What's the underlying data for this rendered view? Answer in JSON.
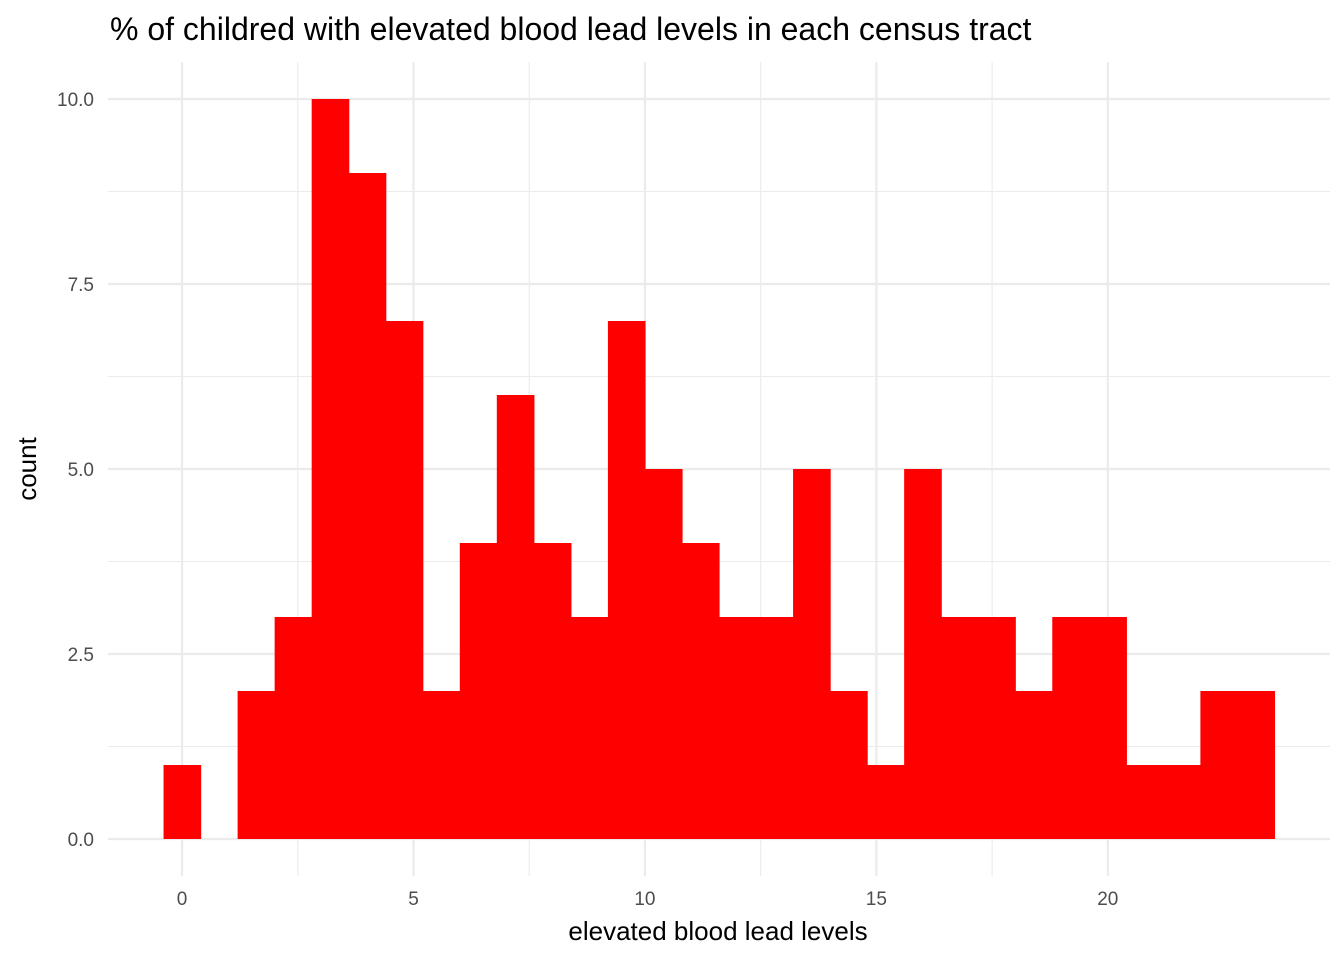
{
  "chart_data": {
    "type": "bar",
    "subtype": "histogram",
    "title": "% of childred with elevated blood lead levels in each census tract",
    "xlabel": "elevated blood lead levels",
    "ylabel": "count",
    "bin_start": -0.4,
    "bin_width": 0.8,
    "counts": [
      1,
      0,
      2,
      3,
      10,
      9,
      7,
      2,
      4,
      6,
      4,
      3,
      7,
      5,
      4,
      3,
      3,
      5,
      2,
      1,
      5,
      3,
      3,
      2,
      3,
      3,
      1,
      1,
      2,
      2
    ],
    "xlim": [
      -1.6,
      24.8
    ],
    "ylim": [
      -0.5,
      10.5
    ],
    "x_ticks": [
      0,
      5,
      10,
      15,
      20
    ],
    "x_tick_labels": [
      "0",
      "5",
      "10",
      "15",
      "20"
    ],
    "y_ticks": [
      0,
      2.5,
      5,
      7.5,
      10
    ],
    "y_tick_labels": [
      "0.0",
      "2.5",
      "5.0",
      "7.5",
      "10.0"
    ],
    "bar_color": "#ff0000",
    "grid": true,
    "legend": "none"
  }
}
